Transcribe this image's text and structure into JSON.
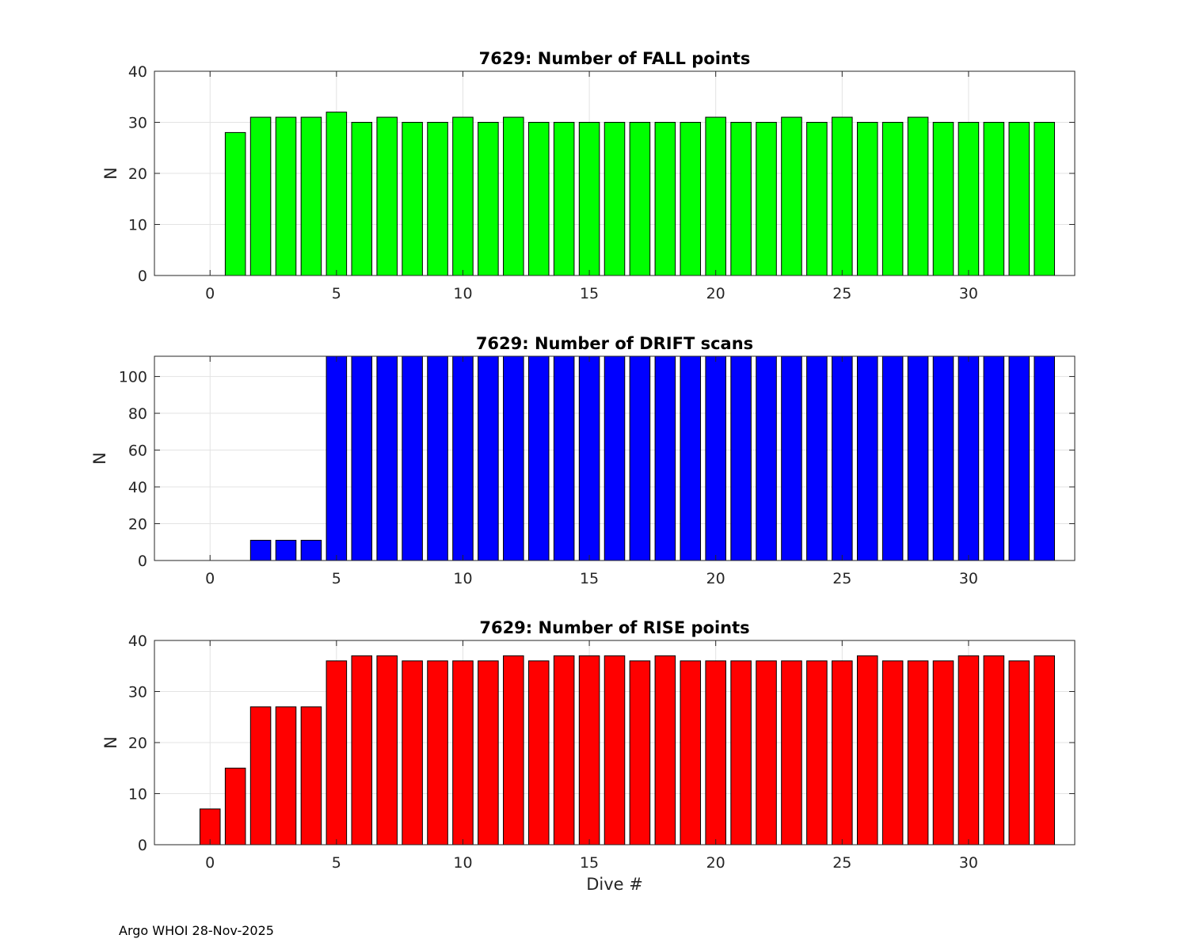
{
  "footer": "Argo WHOI 28-Nov-2025",
  "chart_data": [
    {
      "type": "bar",
      "title": "7629: Number of FALL points",
      "xlabel": "",
      "ylabel": "N",
      "xlim": [
        -2.2,
        34.2
      ],
      "ylim": [
        0,
        40
      ],
      "xticks": [
        0,
        5,
        10,
        15,
        20,
        25,
        30
      ],
      "yticks": [
        0,
        10,
        20,
        30,
        40
      ],
      "grid": true,
      "color": "#00ff00",
      "x": [
        0,
        1,
        2,
        3,
        4,
        5,
        6,
        7,
        8,
        9,
        10,
        11,
        12,
        13,
        14,
        15,
        16,
        17,
        18,
        19,
        20,
        21,
        22,
        23,
        24,
        25,
        26,
        27,
        28,
        29,
        30,
        31,
        32,
        33
      ],
      "values": [
        0,
        28,
        31,
        31,
        31,
        32,
        30,
        31,
        30,
        30,
        31,
        30,
        31,
        30,
        30,
        30,
        30,
        30,
        30,
        30,
        31,
        30,
        30,
        31,
        30,
        31,
        30,
        30,
        31,
        30,
        30,
        30,
        30,
        30
      ]
    },
    {
      "type": "bar",
      "title": "7629: Number of DRIFT scans",
      "xlabel": "",
      "ylabel": "N",
      "xlim": [
        -2.2,
        34.2
      ],
      "ylim": [
        0,
        111
      ],
      "xticks": [
        0,
        5,
        10,
        15,
        20,
        25,
        30
      ],
      "yticks": [
        0,
        20,
        40,
        60,
        80,
        100
      ],
      "grid": true,
      "color": "#0000ff",
      "x": [
        -1,
        0,
        1,
        2,
        3,
        4,
        5,
        6,
        7,
        8,
        9,
        10,
        11,
        12,
        13,
        14,
        15,
        16,
        17,
        18,
        19,
        20,
        21,
        22,
        23,
        24,
        25,
        26,
        27,
        28,
        29,
        30,
        31,
        32,
        33
      ],
      "values": [
        0,
        0,
        0,
        11,
        11,
        11,
        112,
        112,
        112,
        112,
        112,
        112,
        112,
        112,
        112,
        112,
        112,
        112,
        112,
        112,
        112,
        112,
        112,
        112,
        112,
        112,
        112,
        112,
        112,
        112,
        112,
        112,
        112,
        112,
        112
      ]
    },
    {
      "type": "bar",
      "title": "7629: Number of RISE points",
      "xlabel": "Dive #",
      "ylabel": "N",
      "xlim": [
        -2.2,
        34.2
      ],
      "ylim": [
        0,
        40
      ],
      "xticks": [
        0,
        5,
        10,
        15,
        20,
        25,
        30
      ],
      "yticks": [
        0,
        10,
        20,
        30,
        40
      ],
      "grid": true,
      "color": "#ff0000",
      "x": [
        0,
        1,
        2,
        3,
        4,
        5,
        6,
        7,
        8,
        9,
        10,
        11,
        12,
        13,
        14,
        15,
        16,
        17,
        18,
        19,
        20,
        21,
        22,
        23,
        24,
        25,
        26,
        27,
        28,
        29,
        30,
        31,
        32,
        33
      ],
      "values": [
        7,
        15,
        27,
        27,
        27,
        36,
        37,
        37,
        36,
        36,
        36,
        36,
        37,
        36,
        37,
        37,
        37,
        36,
        37,
        36,
        36,
        36,
        36,
        36,
        36,
        36,
        37,
        36,
        36,
        36,
        37,
        37,
        36,
        37
      ]
    }
  ]
}
